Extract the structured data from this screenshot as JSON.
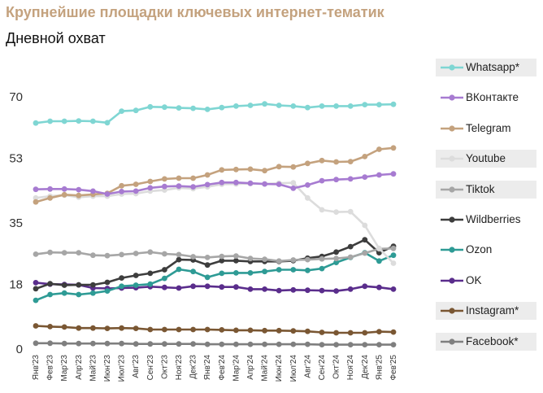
{
  "header": {
    "title": "Крупнейшие площадки ключевых интернет-тематик",
    "subtitle": "Дневной охват"
  },
  "chart_data": {
    "type": "line",
    "title": "Крупнейшие площадки ключевых интернет-тематик",
    "subtitle": "Дневной охват",
    "xlabel": "",
    "ylabel": "",
    "ylim": [
      0,
      70
    ],
    "yticks": [
      0,
      18,
      35,
      53,
      70
    ],
    "grid": false,
    "legend_position": "right",
    "categories": [
      "Янв'23",
      "Фев'23",
      "Мар'23",
      "Апр'23",
      "Май'23",
      "Июн'23",
      "Июл'23",
      "Авг'23",
      "Сен'23",
      "Окт'23",
      "Ноя'23",
      "Дек'23",
      "Янв'24",
      "Фев'24",
      "Мар'24",
      "Апр'24",
      "Май'24",
      "Июн'24",
      "Июл'24",
      "Авг'24",
      "Сен'24",
      "Окт'24",
      "Ноя'24",
      "Дек'24",
      "Янв'25",
      "Фев'25"
    ],
    "series": [
      {
        "name": "Whatsapp*",
        "color": "#7FD6D3",
        "boxed": true,
        "values": [
          62.5,
          63,
          63,
          63.1,
          63,
          62.6,
          65.8,
          66,
          67,
          66.9,
          66.7,
          66.6,
          66.3,
          66.8,
          67.2,
          67.4,
          67.8,
          67.4,
          67.2,
          66.8,
          67.2,
          67.2,
          67.2,
          67.6,
          67.6,
          67.7
        ]
      },
      {
        "name": "ВКонтакте",
        "color": "#A77BD1",
        "boxed": false,
        "values": [
          44.1,
          44.2,
          44.2,
          44,
          43.6,
          42.8,
          43.5,
          43.6,
          44.5,
          44.9,
          45,
          44.8,
          45.4,
          46,
          46,
          45.8,
          45.6,
          45.5,
          44.4,
          45.3,
          46.5,
          46.8,
          47,
          47.5,
          48.1,
          48.4
        ]
      },
      {
        "name": "Telegram",
        "color": "#C4A27E",
        "boxed": false,
        "values": [
          40.6,
          41.7,
          42.6,
          42.4,
          42.7,
          43,
          45.1,
          45.5,
          46.3,
          47,
          47.2,
          47.2,
          48.1,
          49.5,
          49.6,
          49.7,
          49.3,
          50.4,
          50.3,
          51.3,
          52.1,
          51.7,
          51.8,
          53.2,
          55.2,
          55.6
        ]
      },
      {
        "name": "Youtube",
        "color": "#DCDCDC",
        "boxed": true,
        "values": [
          41.7,
          42.2,
          42.5,
          41.9,
          42.2,
          42.2,
          42.8,
          42.9,
          43.6,
          43.9,
          44.5,
          44.3,
          44.8,
          45.5,
          45.6,
          45.7,
          45.6,
          45.8,
          45.9,
          41.7,
          38.4,
          37.8,
          37.9,
          34.1,
          27.7,
          23.6
        ]
      },
      {
        "name": "Tiktok",
        "color": "#A6A6A6",
        "boxed": true,
        "values": [
          26.1,
          26.6,
          26.5,
          26.5,
          25.8,
          25.7,
          26,
          26.3,
          26.7,
          26.2,
          26,
          25.4,
          25.2,
          25.5,
          25.6,
          24.9,
          24.7,
          24.2,
          24.5,
          24.6,
          24.8,
          24.9,
          25.3,
          26.4,
          27.6,
          27.7
        ]
      },
      {
        "name": "Wildberries",
        "color": "#3D3D3D",
        "boxed": false,
        "values": [
          16.5,
          17.9,
          17.5,
          17.6,
          17.6,
          18.3,
          19.5,
          20.2,
          20.8,
          21.8,
          24.6,
          24.5,
          23.1,
          24.3,
          24.3,
          24.1,
          24.1,
          24.1,
          24.3,
          25,
          25.5,
          26.7,
          28.2,
          30.1,
          26.5,
          28.3
        ]
      },
      {
        "name": "Ozon",
        "color": "#2E9B95",
        "boxed": false,
        "values": [
          13.3,
          14.9,
          15.3,
          14.9,
          15.3,
          15.9,
          17.2,
          17.5,
          17.8,
          19.4,
          21.9,
          21.3,
          19.7,
          20.8,
          20.9,
          20.9,
          21.3,
          21.8,
          21.8,
          21.6,
          22.1,
          23.8,
          25.2,
          26.5,
          24.2,
          25.8
        ]
      },
      {
        "name": "OK",
        "color": "#5A2D8C",
        "boxed": false,
        "values": [
          18.2,
          17.8,
          17.7,
          17.6,
          16.7,
          16.6,
          16.7,
          16.8,
          17.1,
          16.9,
          16.7,
          17.2,
          17.2,
          17,
          17,
          16.4,
          16.4,
          16,
          16.2,
          16.1,
          16,
          15.9,
          16.4,
          17.2,
          16.9,
          16.4
        ]
      },
      {
        "name": "Instagram*",
        "color": "#7A5733",
        "boxed": true,
        "values": [
          6.2,
          6,
          5.9,
          5.6,
          5.6,
          5.5,
          5.6,
          5.5,
          5.2,
          5.2,
          5.2,
          5.2,
          5.2,
          5.1,
          5,
          5,
          4.9,
          4.9,
          4.8,
          4.7,
          4.4,
          4.3,
          4.3,
          4.3,
          4.6,
          4.5
        ]
      },
      {
        "name": "Facebook*",
        "color": "#7F7F7F",
        "boxed": true,
        "values": [
          1.4,
          1.4,
          1.3,
          1.3,
          1.3,
          1.3,
          1.3,
          1.2,
          1.2,
          1.2,
          1.2,
          1.2,
          1.1,
          1.1,
          1.1,
          1.1,
          1.1,
          1.1,
          1.1,
          1.1,
          1,
          1,
          1,
          1,
          1,
          1
        ]
      }
    ]
  }
}
